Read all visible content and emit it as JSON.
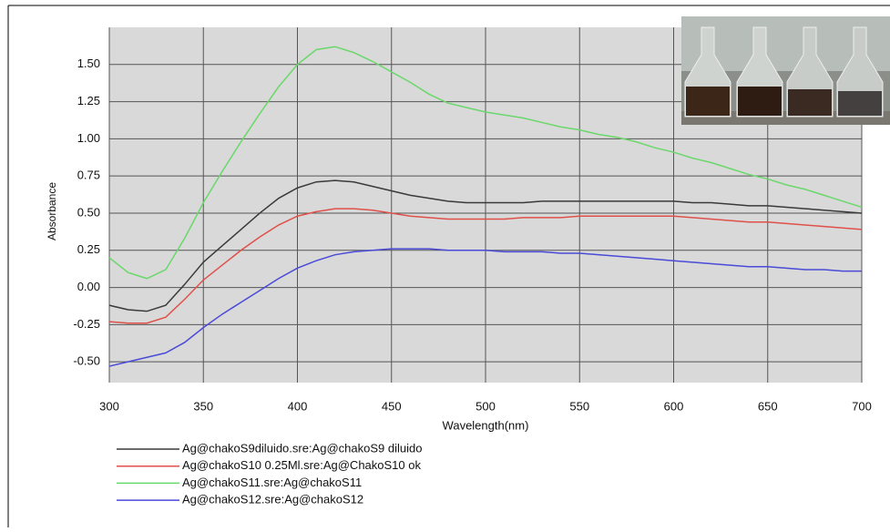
{
  "chart_data": {
    "type": "line",
    "x_label": "Wavelength(nm)",
    "y_label": "Absorbance",
    "x": [
      300,
      310,
      320,
      330,
      340,
      350,
      360,
      370,
      380,
      390,
      400,
      410,
      420,
      430,
      440,
      450,
      460,
      470,
      480,
      490,
      500,
      510,
      520,
      530,
      540,
      550,
      560,
      570,
      580,
      590,
      600,
      610,
      620,
      630,
      640,
      650,
      660,
      670,
      680,
      690,
      700
    ],
    "xlim": [
      300,
      700
    ],
    "xticks": [
      300,
      350,
      400,
      450,
      500,
      550,
      600,
      650,
      700
    ],
    "ylim": [
      -0.64,
      1.75
    ],
    "yticks": [
      {
        "value": -0.5,
        "label": "-0.50"
      },
      -0.25,
      {
        "value": 0,
        "label": "0.00"
      },
      0.25,
      {
        "value": 0.5,
        "label": "0.50"
      },
      0.75,
      {
        "value": 1,
        "label": "1.00"
      },
      1.25,
      {
        "value": 1.5,
        "label": "1.50"
      }
    ],
    "grid": true,
    "series": [
      {
        "name": "Ag@chakoS9diluido.sre:Ag@chakoS9 diluido",
        "color": "#3a3a3a",
        "values": [
          -0.12,
          -0.15,
          -0.16,
          -0.12,
          0.02,
          0.17,
          0.28,
          0.39,
          0.5,
          0.6,
          0.67,
          0.71,
          0.72,
          0.71,
          0.68,
          0.65,
          0.62,
          0.6,
          0.58,
          0.57,
          0.57,
          0.57,
          0.57,
          0.58,
          0.58,
          0.58,
          0.58,
          0.58,
          0.58,
          0.58,
          0.58,
          0.57,
          0.57,
          0.56,
          0.55,
          0.55,
          0.54,
          0.53,
          0.52,
          0.51,
          0.5
        ]
      },
      {
        "name": "Ag@chakoS10 0.25Ml.sre:Ag@ChakoS10 ok",
        "color": "#e0504a",
        "values": [
          -0.23,
          -0.24,
          -0.24,
          -0.2,
          -0.08,
          0.05,
          0.15,
          0.25,
          0.34,
          0.42,
          0.48,
          0.51,
          0.53,
          0.53,
          0.52,
          0.5,
          0.48,
          0.47,
          0.46,
          0.46,
          0.46,
          0.46,
          0.47,
          0.47,
          0.47,
          0.48,
          0.48,
          0.48,
          0.48,
          0.48,
          0.48,
          0.47,
          0.46,
          0.45,
          0.44,
          0.44,
          0.43,
          0.42,
          0.41,
          0.4,
          0.39
        ]
      },
      {
        "name": "Ag@chakoS11.sre:Ag@chakoS11",
        "color": "#6ad86a",
        "values": [
          0.2,
          0.1,
          0.06,
          0.12,
          0.33,
          0.57,
          0.78,
          0.98,
          1.17,
          1.35,
          1.5,
          1.6,
          1.62,
          1.58,
          1.52,
          1.45,
          1.38,
          1.3,
          1.24,
          1.21,
          1.18,
          1.16,
          1.14,
          1.11,
          1.08,
          1.06,
          1.03,
          1.01,
          0.98,
          0.94,
          0.91,
          0.87,
          0.84,
          0.8,
          0.76,
          0.73,
          0.69,
          0.66,
          0.62,
          0.58,
          0.54
        ]
      },
      {
        "name": "Ag@chakoS12.sre:Ag@chakoS12",
        "color": "#4a4ad8",
        "values": [
          -0.53,
          -0.5,
          -0.47,
          -0.44,
          -0.37,
          -0.27,
          -0.18,
          -0.1,
          -0.02,
          0.06,
          0.13,
          0.18,
          0.22,
          0.24,
          0.25,
          0.26,
          0.26,
          0.26,
          0.25,
          0.25,
          0.25,
          0.24,
          0.24,
          0.24,
          0.23,
          0.23,
          0.22,
          0.21,
          0.2,
          0.19,
          0.18,
          0.17,
          0.16,
          0.15,
          0.14,
          0.14,
          0.13,
          0.12,
          0.12,
          0.11,
          0.11
        ]
      }
    ]
  }
}
